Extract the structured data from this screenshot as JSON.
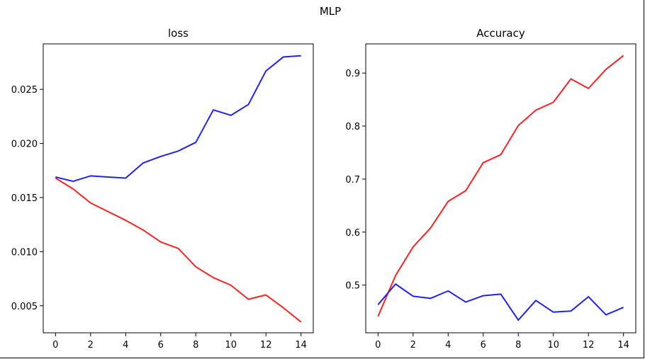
{
  "figure": {
    "title": "MLP"
  },
  "colors": {
    "red": "#ff2020",
    "blue": "#2020ff",
    "axis": "#000000"
  },
  "chart_data": [
    {
      "type": "line",
      "title": "loss",
      "xlabel": "",
      "ylabel": "",
      "xlim": [
        -0.7,
        14.7
      ],
      "ylim": [
        0.0025,
        0.0292
      ],
      "xticks": [
        0,
        2,
        4,
        6,
        8,
        10,
        12,
        14
      ],
      "xtick_labels": [
        "0",
        "2",
        "4",
        "6",
        "8",
        "10",
        "12",
        "14"
      ],
      "yticks": [
        0.005,
        0.01,
        0.015,
        0.02,
        0.025
      ],
      "ytick_labels": [
        "0.005",
        "0.010",
        "0.015",
        "0.020",
        "0.025"
      ],
      "grid": false,
      "x": [
        0,
        1,
        2,
        3,
        4,
        5,
        6,
        7,
        8,
        9,
        10,
        11,
        12,
        13,
        14
      ],
      "series": [
        {
          "color": "#2020ff",
          "values": [
            0.0169,
            0.0165,
            0.017,
            0.0169,
            0.0168,
            0.0182,
            0.0188,
            0.0193,
            0.0201,
            0.0231,
            0.0226,
            0.0236,
            0.0267,
            0.028,
            0.0281
          ]
        },
        {
          "color": "#ff2020",
          "values": [
            0.0168,
            0.0158,
            0.0145,
            0.0137,
            0.0129,
            0.012,
            0.0109,
            0.0103,
            0.0086,
            0.0076,
            0.0069,
            0.0056,
            0.006,
            0.0048,
            0.0035
          ]
        }
      ]
    },
    {
      "type": "line",
      "title": "Accuracy",
      "xlabel": "",
      "ylabel": "",
      "xlim": [
        -0.7,
        14.7
      ],
      "ylim": [
        0.41,
        0.955
      ],
      "xticks": [
        0,
        2,
        4,
        6,
        8,
        10,
        12,
        14
      ],
      "xtick_labels": [
        "0",
        "2",
        "4",
        "6",
        "8",
        "10",
        "12",
        "14"
      ],
      "yticks": [
        0.5,
        0.6,
        0.7,
        0.8,
        0.9
      ],
      "ytick_labels": [
        "0.5",
        "0.6",
        "0.7",
        "0.8",
        "0.9"
      ],
      "grid": false,
      "x": [
        0,
        1,
        2,
        3,
        4,
        5,
        6,
        7,
        8,
        9,
        10,
        11,
        12,
        13,
        14
      ],
      "series": [
        {
          "color": "#ff2020",
          "values": [
            0.441,
            0.518,
            0.572,
            0.608,
            0.658,
            0.678,
            0.731,
            0.746,
            0.801,
            0.83,
            0.845,
            0.889,
            0.871,
            0.907,
            0.933
          ]
        },
        {
          "color": "#2020ff",
          "values": [
            0.463,
            0.502,
            0.479,
            0.475,
            0.489,
            0.468,
            0.48,
            0.483,
            0.434,
            0.471,
            0.449,
            0.451,
            0.478,
            0.444,
            0.458
          ]
        }
      ]
    }
  ]
}
